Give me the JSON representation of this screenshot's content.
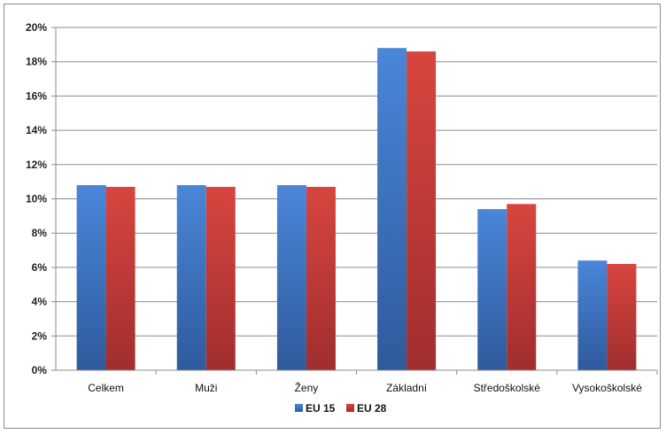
{
  "chart_data": {
    "type": "bar",
    "categories": [
      "Celkem",
      "Muži",
      "Ženy",
      "Základní",
      "Středoškolské",
      "Vysokoškolské"
    ],
    "series": [
      {
        "name": "EU 15",
        "color": "#3f72c4",
        "values": [
          10.8,
          10.8,
          10.8,
          18.8,
          9.4,
          6.4
        ]
      },
      {
        "name": "EU 28",
        "color": "#c23b3b",
        "values": [
          10.7,
          10.7,
          10.7,
          18.6,
          9.7,
          6.2
        ]
      }
    ],
    "ylim": [
      0,
      20
    ],
    "yticks": [
      "0%",
      "2%",
      "4%",
      "6%",
      "8%",
      "10%",
      "12%",
      "14%",
      "16%",
      "18%",
      "20%"
    ],
    "grid": true,
    "legend_position": "bottom"
  }
}
